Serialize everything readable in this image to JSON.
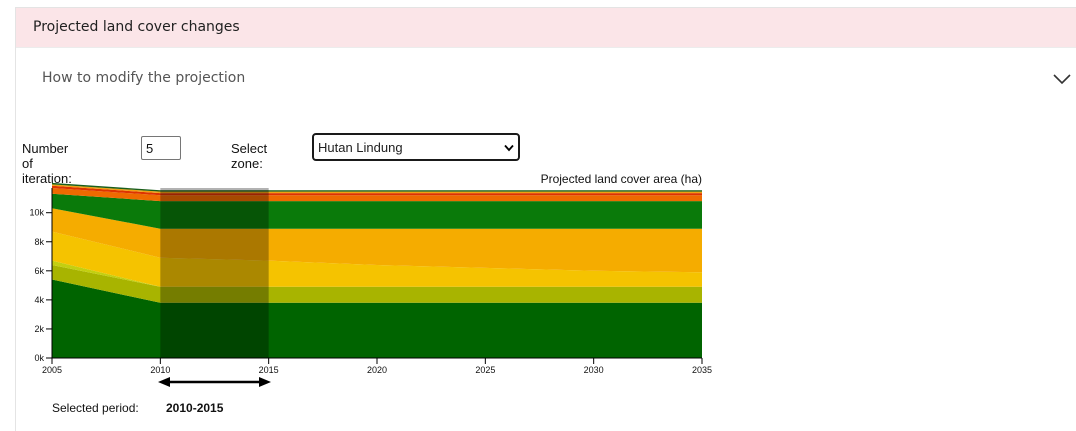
{
  "panel": {
    "title": "Projected land cover changes"
  },
  "accordion": {
    "label": "How to modify the projection",
    "icon": "chevron-down-icon"
  },
  "controls": {
    "iteration_label": "Number of iteration:",
    "iteration_value": "5",
    "zone_label": "Select zone:",
    "zone_value": "Hutan Lindung"
  },
  "period": {
    "label": "Selected period:",
    "value": "2010-2015"
  },
  "colors": {
    "header_bg": "#fbe5e8",
    "dark_green": "#006400",
    "olive": "#a8b400",
    "yellow": "#f5c300",
    "orange_yellow": "#f5ac00",
    "orange": "#ee6a00",
    "red_orange": "#dd3300",
    "selection_overlay": "rgba(0,0,0,0.3)"
  },
  "chart_data": {
    "type": "area",
    "title": "Projected land cover area (ha)",
    "x": [
      2005,
      2010,
      2015,
      2020,
      2025,
      2030,
      2035
    ],
    "xticks": [
      "2005",
      "2010",
      "2015",
      "2020",
      "2025",
      "2030",
      "2035"
    ],
    "yticks": [
      "0k",
      "2k",
      "4k",
      "6k",
      "8k",
      "10k"
    ],
    "ylim": [
      0,
      11700
    ],
    "stacked": true,
    "selected_range": [
      2010,
      2015
    ],
    "series": [
      {
        "color": "#006400",
        "values": [
          5400,
          3800,
          3800,
          3800,
          3800,
          3800,
          3800
        ]
      },
      {
        "color": "#a8b400",
        "values": [
          1000,
          1100,
          1100,
          1100,
          1100,
          1100,
          1100
        ]
      },
      {
        "color": "#c3cf10",
        "values": [
          300,
          0,
          0,
          0,
          0,
          0,
          0
        ]
      },
      {
        "color": "#f5c300",
        "values": [
          2000,
          2000,
          1800,
          1500,
          1300,
          1100,
          1000
        ]
      },
      {
        "color": "#f5ac00",
        "values": [
          1600,
          2000,
          2200,
          2500,
          2700,
          2900,
          3000
        ]
      },
      {
        "color": "#0a7a0a",
        "values": [
          1000,
          1900,
          1900,
          1900,
          1900,
          1900,
          1900
        ]
      },
      {
        "color": "#ee6a00",
        "values": [
          400,
          400,
          400,
          400,
          400,
          400,
          400
        ]
      },
      {
        "color": "#dd3300",
        "values": [
          150,
          150,
          150,
          150,
          150,
          150,
          150
        ]
      },
      {
        "color": "#f0a010",
        "values": [
          100,
          100,
          100,
          100,
          100,
          100,
          100
        ]
      },
      {
        "color": "#1a5e1a",
        "values": [
          100,
          100,
          100,
          100,
          100,
          100,
          100
        ]
      }
    ]
  }
}
